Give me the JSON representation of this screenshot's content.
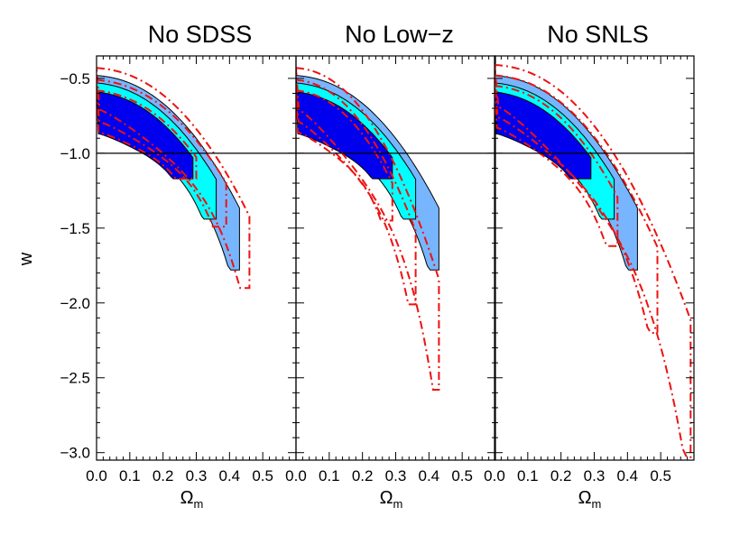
{
  "chart_data": {
    "type": "contour",
    "ylabel": "w",
    "xlabel": "Ω",
    "xlabel_subscript": "m",
    "xlim": [
      0.0,
      0.6
    ],
    "ylim": [
      -3.05,
      -0.35
    ],
    "x_ticks": [
      "0.0",
      "0.1",
      "0.2",
      "0.3",
      "0.4",
      "0.5"
    ],
    "x_tick_values": [
      0.0,
      0.1,
      0.2,
      0.3,
      0.4,
      0.5
    ],
    "y_ticks": [
      "−0.5",
      "−1.0",
      "−1.5",
      "−2.0",
      "−2.5",
      "−3.0"
    ],
    "y_tick_values": [
      -0.5,
      -1.0,
      -1.5,
      -2.0,
      -2.5,
      -3.0
    ],
    "reference_line_w": -1.0,
    "colors": {
      "sigma1": "#0000ee",
      "sigma2": "#00ffff",
      "sigma3": "#77b6ff",
      "dashed": "#ee1111",
      "axis": "#000000"
    },
    "panels": [
      {
        "title": "No SDSS",
        "filled_contours": [
          {
            "level": "3σ",
            "x_max": 0.43,
            "w_min": -1.78,
            "w_top": -0.48
          },
          {
            "level": "2σ",
            "x_max": 0.36,
            "w_min": -1.44,
            "w_top": -0.53
          },
          {
            "level": "1σ",
            "x_max": 0.29,
            "w_min": -1.17,
            "w_top": -0.59
          }
        ],
        "dashed_contours": [
          {
            "x_max": 0.46,
            "w_min": -1.9,
            "w_top": -0.43
          },
          {
            "x_max": 0.39,
            "w_min": -1.49,
            "w_top": -0.51
          },
          {
            "x_max": 0.3,
            "w_min": -1.17,
            "w_top": -0.58
          }
        ]
      },
      {
        "title": "No Low−z",
        "filled_contours": [
          {
            "level": "3σ",
            "x_max": 0.43,
            "w_min": -1.78,
            "w_top": -0.48
          },
          {
            "level": "2σ",
            "x_max": 0.36,
            "w_min": -1.44,
            "w_top": -0.53
          },
          {
            "level": "1σ",
            "x_max": 0.29,
            "w_min": -1.17,
            "w_top": -0.59
          }
        ],
        "dashed_contours": [
          {
            "x_max": 0.43,
            "w_min": -2.58,
            "w_top": -0.43
          },
          {
            "x_max": 0.36,
            "w_min": -2.01,
            "w_top": -0.51
          },
          {
            "x_max": 0.29,
            "w_min": -1.45,
            "w_top": -0.58
          }
        ]
      },
      {
        "title": "No SNLS",
        "filled_contours": [
          {
            "level": "3σ",
            "x_max": 0.43,
            "w_min": -1.78,
            "w_top": -0.48
          },
          {
            "level": "2σ",
            "x_max": 0.36,
            "w_min": -1.44,
            "w_top": -0.53
          },
          {
            "level": "1σ",
            "x_max": 0.29,
            "w_min": -1.17,
            "w_top": -0.59
          }
        ],
        "dashed_contours": [
          {
            "x_max": 0.59,
            "w_min": -3.03,
            "w_top": -0.41
          },
          {
            "x_max": 0.49,
            "w_min": -2.2,
            "w_top": -0.48
          },
          {
            "x_max": 0.37,
            "w_min": -1.62,
            "w_top": -0.55
          }
        ]
      }
    ]
  }
}
